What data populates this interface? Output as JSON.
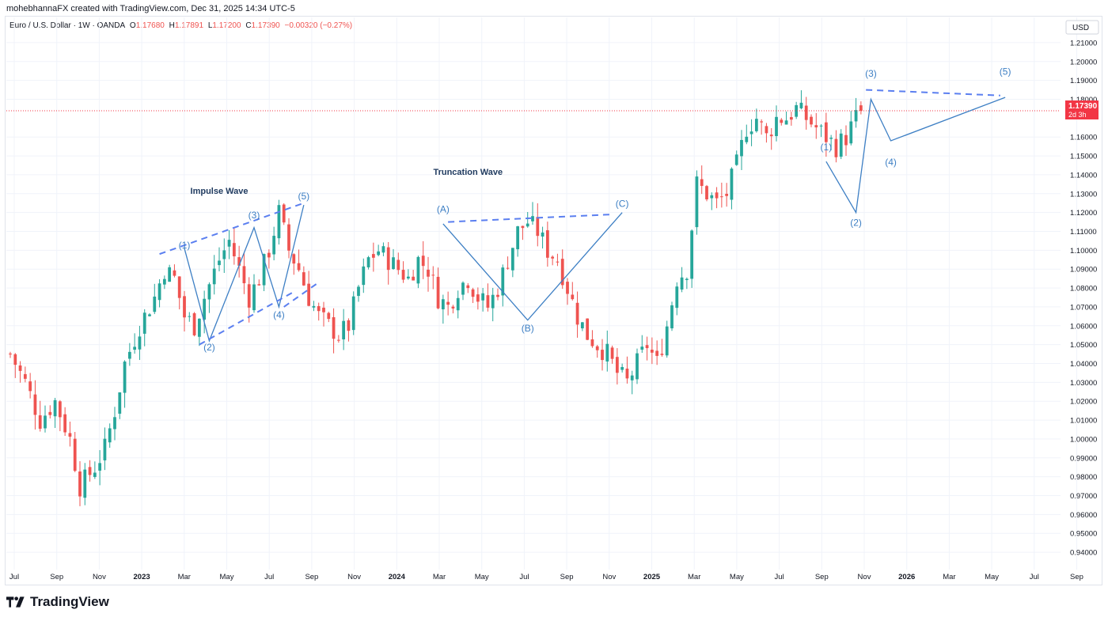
{
  "header": {
    "title": "mohebhannaFX created with TradingView.com, Dec 31, 2025 14:34 UTC-5"
  },
  "symbol": {
    "name": "Euro / U.S. Dollar · 1W · OANDA",
    "open_label": "O",
    "open": "1.17680",
    "high_label": "H",
    "high": "1.17891",
    "low_label": "L",
    "low": "1.17200",
    "close_label": "C",
    "close": "1.17390",
    "change": "−0.00320 (−0.27%)"
  },
  "price_scale": {
    "currency": "USD",
    "last_price": "1.17390",
    "countdown": "2d 3h"
  },
  "colors": {
    "up": "#26a69a",
    "down": "#ef5350",
    "wave": "#3d7fc4",
    "dashed": "#5b7ff0",
    "label_text": "#1f3a5f"
  },
  "footer": {
    "brand": "TradingView"
  },
  "chart_data": {
    "type": "candlestick",
    "x_axis_labels": [
      "Jul",
      "Sep",
      "Nov",
      "2023",
      "Mar",
      "May",
      "Jul",
      "Sep",
      "Nov",
      "2024",
      "Mar",
      "May",
      "Jul",
      "Sep",
      "Nov",
      "2025",
      "Mar",
      "May",
      "Jul",
      "Sep",
      "Nov",
      "2026",
      "Mar",
      "May",
      "Jul",
      "Sep"
    ],
    "y_ticks": [
      "1.21000",
      "1.20000",
      "1.19000",
      "1.18000",
      "1.16000",
      "1.15000",
      "1.14000",
      "1.13000",
      "1.12000",
      "1.11000",
      "1.10000",
      "1.09000",
      "1.08000",
      "1.07000",
      "1.06000",
      "1.05000",
      "1.04000",
      "1.03000",
      "1.02000",
      "1.01000",
      "1.00000",
      "0.99000",
      "0.98000",
      "0.97000",
      "0.96000",
      "0.95000",
      "0.94000"
    ],
    "ylim": [
      0.935,
      1.215
    ],
    "last_close": 1.1739,
    "close_path": [
      [
        0,
        1.045
      ],
      [
        3,
        1.03
      ],
      [
        6,
        1.01
      ],
      [
        9,
        1.02
      ],
      [
        12,
        1.0
      ],
      [
        14,
        0.975
      ],
      [
        17,
        0.985
      ],
      [
        19,
        0.995
      ],
      [
        21,
        1.015
      ],
      [
        23,
        1.04
      ],
      [
        26,
        1.06
      ],
      [
        29,
        1.075
      ],
      [
        31,
        1.09
      ],
      [
        33,
        1.085
      ],
      [
        35,
        1.065
      ],
      [
        37,
        1.06
      ],
      [
        39,
        1.075
      ],
      [
        42,
        1.095
      ],
      [
        44,
        1.105
      ],
      [
        46,
        1.09
      ],
      [
        48,
        1.075
      ],
      [
        50,
        1.085
      ],
      [
        52,
        1.1
      ],
      [
        54,
        1.12
      ],
      [
        56,
        1.1
      ],
      [
        58,
        1.09
      ],
      [
        60,
        1.075
      ],
      [
        62,
        1.065
      ],
      [
        64,
        1.06
      ],
      [
        66,
        1.055
      ],
      [
        68,
        1.06
      ],
      [
        70,
        1.08
      ],
      [
        72,
        1.095
      ],
      [
        74,
        1.1
      ],
      [
        76,
        1.095
      ],
      [
        78,
        1.09
      ],
      [
        80,
        1.085
      ],
      [
        82,
        1.095
      ],
      [
        84,
        1.09
      ],
      [
        86,
        1.075
      ],
      [
        88,
        1.07
      ],
      [
        90,
        1.08
      ],
      [
        92,
        1.085
      ],
      [
        94,
        1.075
      ],
      [
        96,
        1.07
      ],
      [
        98,
        1.08
      ],
      [
        100,
        1.095
      ],
      [
        102,
        1.11
      ],
      [
        104,
        1.115
      ],
      [
        106,
        1.11
      ],
      [
        108,
        1.1
      ],
      [
        110,
        1.095
      ],
      [
        112,
        1.08
      ],
      [
        114,
        1.065
      ],
      [
        116,
        1.055
      ],
      [
        118,
        1.05
      ],
      [
        120,
        1.045
      ],
      [
        122,
        1.035
      ],
      [
        124,
        1.03
      ],
      [
        126,
        1.04
      ],
      [
        128,
        1.05
      ],
      [
        130,
        1.04
      ],
      [
        132,
        1.06
      ],
      [
        134,
        1.085
      ],
      [
        136,
        1.09
      ],
      [
        138,
        1.135
      ],
      [
        140,
        1.13
      ],
      [
        142,
        1.125
      ],
      [
        144,
        1.13
      ],
      [
        146,
        1.145
      ],
      [
        148,
        1.165
      ],
      [
        150,
        1.17
      ],
      [
        152,
        1.16
      ],
      [
        154,
        1.17
      ],
      [
        156,
        1.17
      ],
      [
        158,
        1.175
      ],
      [
        160,
        1.17
      ],
      [
        162,
        1.165
      ],
      [
        164,
        1.16
      ],
      [
        166,
        1.155
      ],
      [
        168,
        1.16
      ],
      [
        170,
        1.17
      ],
      [
        171,
        1.174
      ]
    ],
    "wave_labels": [
      {
        "text": "(1)",
        "i": 35,
        "p": 1.101
      },
      {
        "text": "(2)",
        "i": 40,
        "p": 1.047
      },
      {
        "text": "(3)",
        "i": 49,
        "p": 1.117
      },
      {
        "text": "(4)",
        "i": 54,
        "p": 1.064
      },
      {
        "text": "(5)",
        "i": 59,
        "p": 1.127
      },
      {
        "text": "(A)",
        "i": 87,
        "p": 1.12
      },
      {
        "text": "(B)",
        "i": 104,
        "p": 1.057
      },
      {
        "text": "(C)",
        "i": 123,
        "p": 1.123
      },
      {
        "text": "(1)",
        "i": 164,
        "p": 1.153
      },
      {
        "text": "(2)",
        "i": 170,
        "p": 1.113
      },
      {
        "text": "(3)",
        "i": 173,
        "p": 1.192
      },
      {
        "text": "(4)",
        "i": 177,
        "p": 1.145
      },
      {
        "text": "(5)",
        "i": 200,
        "p": 1.193
      }
    ],
    "annotations": [
      {
        "text": "Impulse Wave",
        "i": 42,
        "p": 1.13
      },
      {
        "text": "Truncation Wave",
        "i": 92,
        "p": 1.14
      }
    ]
  }
}
